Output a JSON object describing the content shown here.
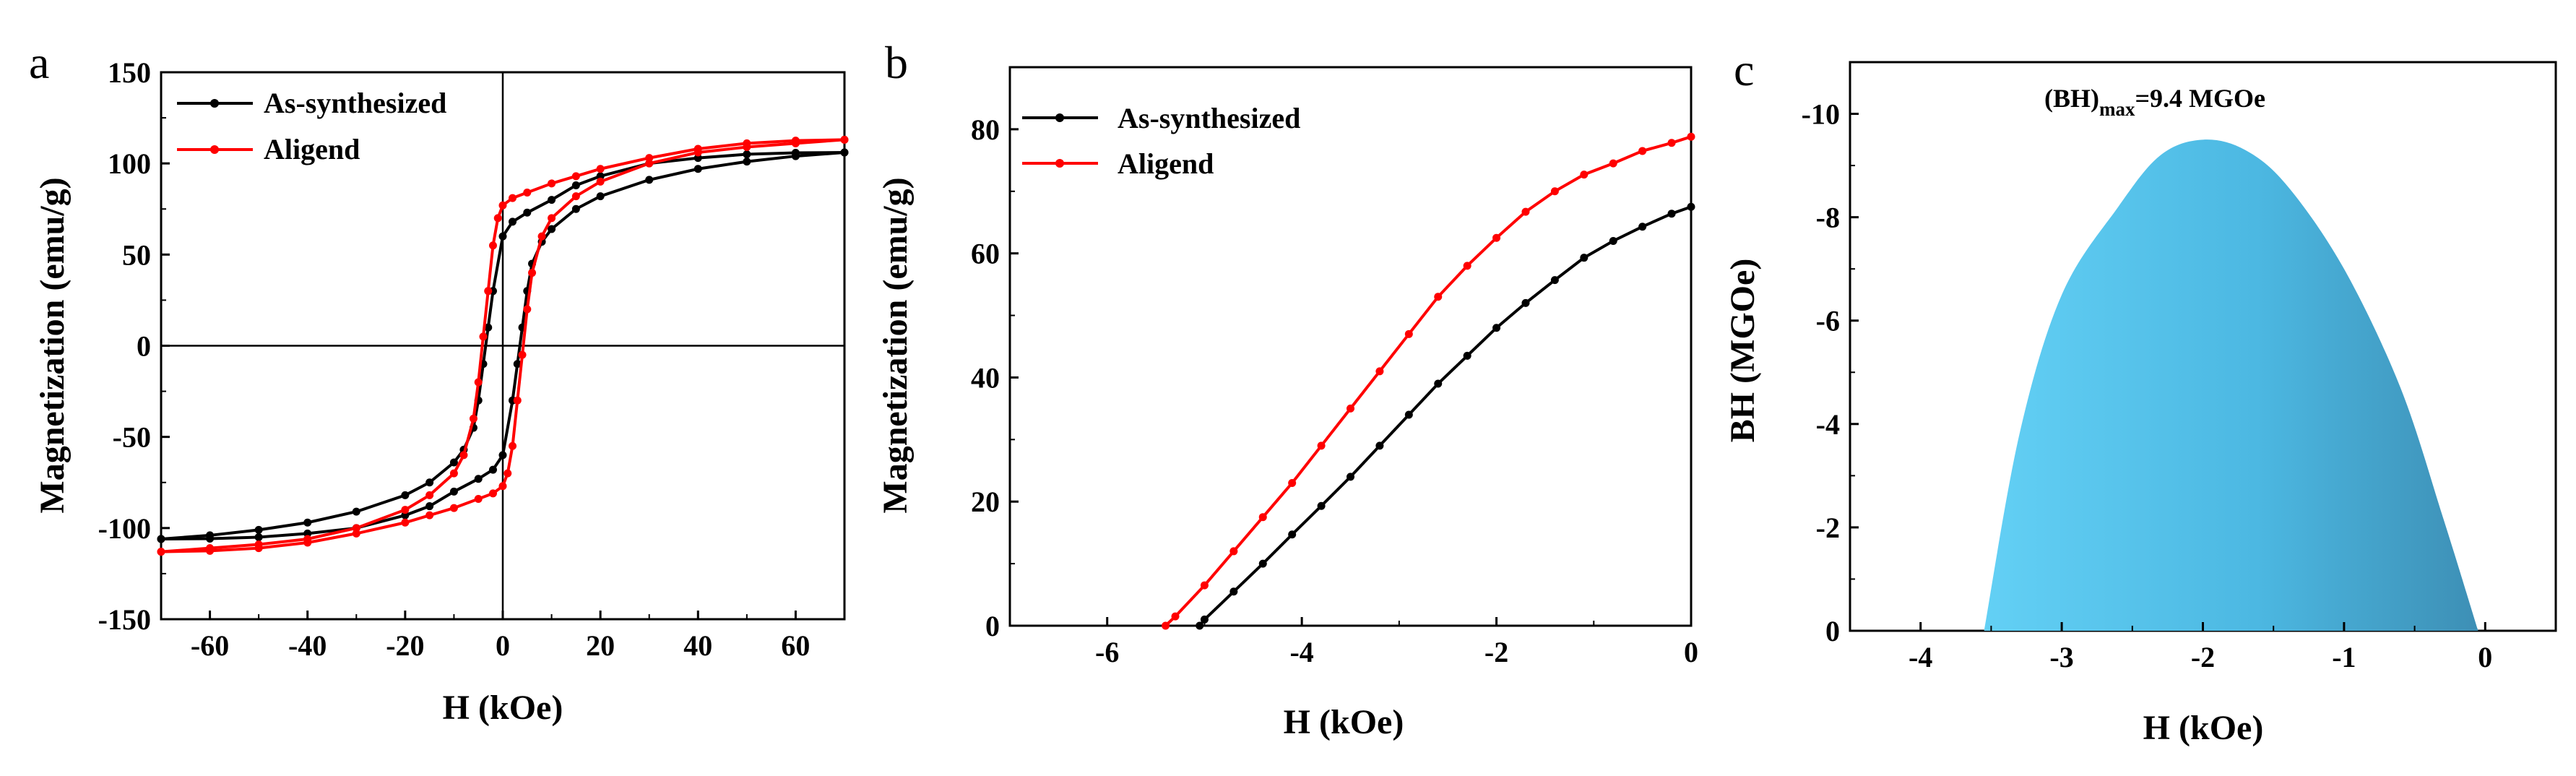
{
  "colors": {
    "black_series": "#000000",
    "red_series": "#ff0000",
    "fill_left": "#63d0f5",
    "fill_mid": "#4cb8e2",
    "fill_right": "#3d8fb5"
  },
  "chart_data": [
    {
      "panel": "a",
      "type": "line",
      "xlabel": "H (kOe)",
      "ylabel": "Magnetization (emu/g)",
      "xlim": [
        -70,
        70
      ],
      "ylim": [
        -150,
        150
      ],
      "xticks": [
        -60,
        -40,
        -20,
        0,
        20,
        40,
        60
      ],
      "yticks": [
        -150,
        -100,
        -50,
        0,
        50,
        100,
        150
      ],
      "legend": [
        "As-synthesized",
        "Aligend"
      ],
      "legend_position": "top-left",
      "reference_lines": {
        "x": 0,
        "y": 0
      },
      "series": [
        {
          "name": "As-synthesized",
          "color": "black",
          "upper_branch": {
            "x": [
              70,
              60,
              50,
              40,
              30,
              20,
              15,
              10,
              5,
              2,
              0,
              -2,
              -3,
              -4,
              -5,
              -6,
              -8,
              -10,
              -15,
              -20,
              -30,
              -40,
              -50,
              -60,
              -70
            ],
            "y": [
              106,
              105.8,
              105,
              103,
              100,
              93,
              88,
              80,
              73,
              68,
              60,
              30,
              10,
              -10,
              -30,
              -45,
              -57,
              -64,
              -75,
              -82,
              -91,
              -97,
              -101,
              -104,
              -106
            ]
          },
          "lower_branch": {
            "x": [
              -70,
              -60,
              -50,
              -40,
              -30,
              -20,
              -15,
              -10,
              -5,
              -2,
              0,
              2,
              3,
              4,
              5,
              6,
              8,
              10,
              15,
              20,
              30,
              40,
              50,
              60,
              70
            ],
            "y": [
              -106,
              -105.8,
              -105,
              -103,
              -100,
              -93,
              -88,
              -80,
              -73,
              -68,
              -60,
              -30,
              -10,
              10,
              30,
              45,
              57,
              64,
              75,
              82,
              91,
              97,
              101,
              104,
              106
            ]
          }
        },
        {
          "name": "Aligend",
          "color": "red",
          "upper_branch": {
            "x": [
              70,
              60,
              50,
              40,
              30,
              20,
              15,
              10,
              5,
              2,
              0,
              -1,
              -2,
              -3,
              -4,
              -5,
              -6,
              -8,
              -10,
              -15,
              -20,
              -30,
              -40,
              -50,
              -60,
              -70
            ],
            "y": [
              113,
              112.5,
              111,
              108,
              103,
              97,
              93,
              89,
              84,
              81,
              77,
              70,
              55,
              30,
              5,
              -20,
              -40,
              -60,
              -70,
              -82,
              -90,
              -100,
              -106,
              -109,
              -111,
              -113
            ]
          },
          "lower_branch": {
            "x": [
              -70,
              -60,
              -50,
              -40,
              -30,
              -20,
              -15,
              -10,
              -5,
              -2,
              0,
              1,
              2,
              3,
              4,
              5,
              6,
              8,
              10,
              15,
              20,
              30,
              40,
              50,
              60,
              70
            ],
            "y": [
              -113,
              -112.5,
              -111,
              -108,
              -103,
              -97,
              -93,
              -89,
              -84,
              -81,
              -77,
              -70,
              -55,
              -30,
              -5,
              20,
              40,
              60,
              70,
              82,
              90,
              100,
              106,
              109,
              111,
              113
            ]
          }
        }
      ]
    },
    {
      "panel": "b",
      "type": "line",
      "xlabel": "H (kOe)",
      "ylabel": "Magnetization (emu/g)",
      "xlim": [
        -7,
        0
      ],
      "ylim": [
        0,
        90
      ],
      "xticks": [
        -6,
        -4,
        -2,
        0
      ],
      "yticks": [
        0,
        20,
        40,
        60,
        80
      ],
      "legend": [
        "As-synthesized",
        "Aligend"
      ],
      "legend_position": "top-left",
      "series": [
        {
          "name": "As-synthesized",
          "color": "black",
          "x": [
            -5.05,
            -5.0,
            -4.7,
            -4.4,
            -4.1,
            -3.8,
            -3.5,
            -3.2,
            -2.9,
            -2.6,
            -2.3,
            -2.0,
            -1.7,
            -1.4,
            -1.1,
            -0.8,
            -0.5,
            -0.2,
            0
          ],
          "y": [
            0,
            1,
            5.5,
            10,
            14.7,
            19.3,
            24,
            29,
            34,
            39,
            43.5,
            48,
            52,
            55.7,
            59.3,
            62,
            64.3,
            66.4,
            67.5
          ]
        },
        {
          "name": "Aligend",
          "color": "red",
          "x": [
            -5.4,
            -5.3,
            -5.0,
            -4.7,
            -4.4,
            -4.1,
            -3.8,
            -3.5,
            -3.2,
            -2.9,
            -2.6,
            -2.3,
            -2.0,
            -1.7,
            -1.4,
            -1.1,
            -0.8,
            -0.5,
            -0.2,
            0
          ],
          "y": [
            0,
            1.5,
            6.5,
            12,
            17.5,
            23,
            29,
            35,
            41,
            47,
            53,
            58,
            62.5,
            66.7,
            70,
            72.7,
            74.5,
            76.5,
            77.8,
            78.8
          ]
        }
      ]
    },
    {
      "panel": "c",
      "type": "area",
      "xlabel": "H (kOe)",
      "ylabel": "BH (MGOe)",
      "xlim": [
        -4.5,
        0.5
      ],
      "ylim": [
        0,
        -11
      ],
      "xticks": [
        -4,
        -3,
        -2,
        -1,
        0
      ],
      "yticks": [
        0,
        -2,
        -4,
        -6,
        -8,
        -10
      ],
      "annotation": {
        "main": "(BH)",
        "sub": "max",
        "rest": "=9.4 MGOe"
      },
      "series": [
        {
          "name": "BH",
          "x": [
            -3.55,
            -3.3,
            -3.0,
            -2.6,
            -2.3,
            -2.0,
            -1.7,
            -1.4,
            -1.0,
            -0.6,
            -0.3,
            -0.05
          ],
          "y": [
            0,
            -3.8,
            -6.5,
            -8.2,
            -9.2,
            -9.5,
            -9.3,
            -8.6,
            -7.0,
            -4.7,
            -2.2,
            0
          ]
        }
      ]
    }
  ],
  "panels": {
    "a": {
      "label": "a"
    },
    "b": {
      "label": "b"
    },
    "c": {
      "label": "c"
    }
  }
}
